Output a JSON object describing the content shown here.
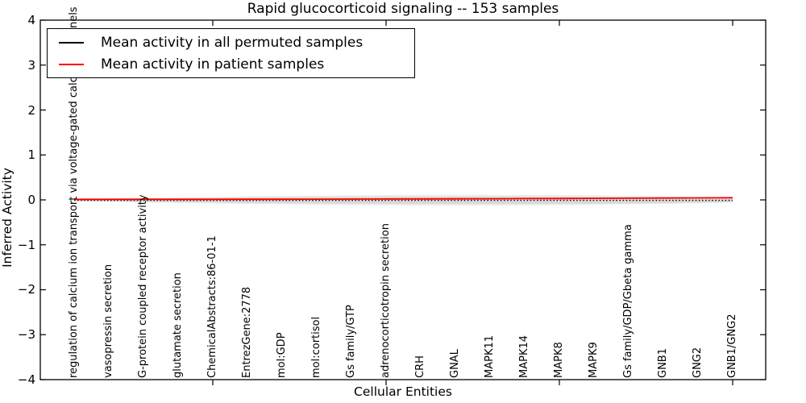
{
  "title": "Rapid glucocorticoid signaling -- 153 samples",
  "axes": {
    "xlabel": "Cellular Entities",
    "ylabel": "Inferred Activity",
    "yticks": [
      "4",
      "3",
      "2",
      "1",
      "0",
      "−1",
      "−2",
      "−3",
      "−4"
    ]
  },
  "legend": {
    "items": [
      {
        "label": "Mean activity in all permuted samples",
        "color": "#000000"
      },
      {
        "label": "Mean activity in patient samples",
        "color": "#ff0000"
      }
    ],
    "position": "upper left"
  },
  "chart_data": {
    "type": "line",
    "title": "Rapid glucocorticoid signaling -- 153 samples",
    "xlabel": "Cellular Entities",
    "ylabel": "Inferred Activity",
    "ylim": [
      -4,
      4
    ],
    "grid": false,
    "categories": [
      "regulation of calcium ion transport via voltage-gated calcium channels",
      "vasopressin secretion",
      "G-protein coupled receptor activity",
      "glutamate secretion",
      "ChemicalAbstracts:86-01-1",
      "EntrezGene:2778",
      "mol:GDP",
      "mol:cortisol",
      "Gs family/GTP",
      "adrenocorticotropin secretion",
      "CRH",
      "GNAL",
      "MAPK11",
      "MAPK14",
      "MAPK8",
      "MAPK9",
      "Gs family/GDP/Gbeta gamma",
      "GNB1",
      "GNG2",
      "GNB1/GNG2"
    ],
    "series": [
      {
        "name": "Mean activity in all permuted samples",
        "color": "#000000",
        "style": "dotted",
        "values": [
          0,
          0,
          0,
          0,
          0,
          0,
          0,
          0,
          0,
          0,
          0,
          0,
          0,
          0,
          0,
          0,
          0,
          0,
          0,
          0
        ]
      },
      {
        "name": "Mean activity in patient samples",
        "color": "#ff0000",
        "style": "solid",
        "values": [
          0.005,
          0.005,
          0.005,
          0.005,
          0.006,
          0.007,
          0.008,
          0.009,
          0.01,
          0.012,
          0.014,
          0.016,
          0.018,
          0.021,
          0.024,
          0.027,
          0.03,
          0.034,
          0.038,
          0.042
        ]
      }
    ],
    "shaded_region": {
      "name": "spread of permuted sample activity",
      "color": "#d9d9d9",
      "ymin_approx": -0.09,
      "ymax_approx": 0.09
    }
  }
}
